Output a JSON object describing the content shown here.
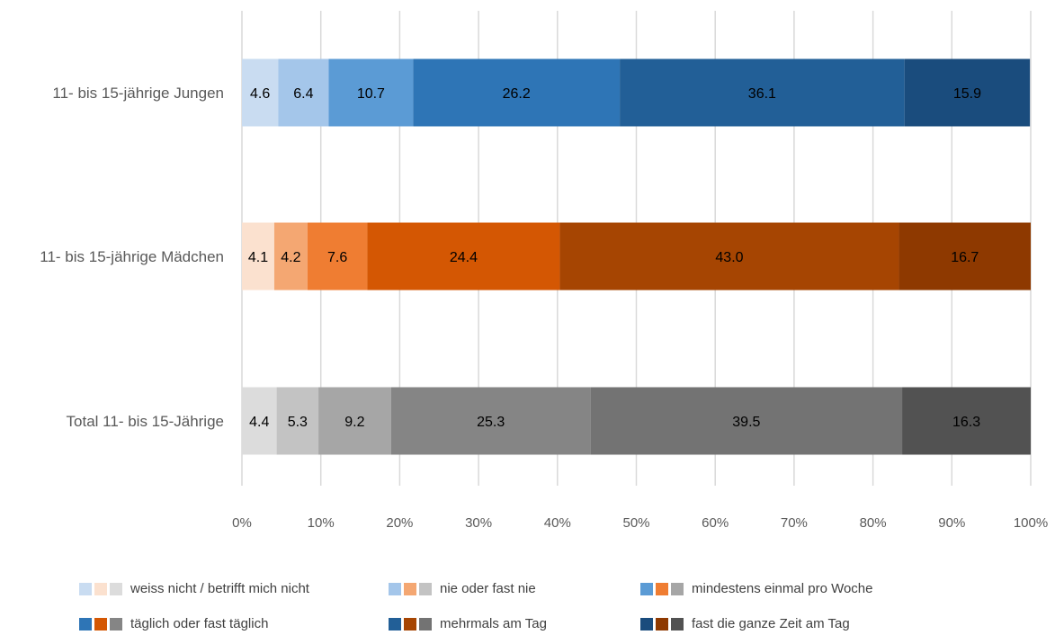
{
  "chart_data": {
    "type": "bar",
    "orientation": "horizontal",
    "stacked": true,
    "percent": true,
    "categories": [
      "11- bis 15-jährige Jungen",
      "11- bis 15-jährige Mädchen",
      "Total  11- bis 15-Jährige"
    ],
    "series": [
      {
        "name": "weiss nicht / betrifft mich nicht",
        "values": [
          4.6,
          4.1,
          4.4
        ]
      },
      {
        "name": "nie oder fast nie",
        "values": [
          6.4,
          4.2,
          5.3
        ]
      },
      {
        "name": "mindestens einmal pro Woche",
        "values": [
          10.7,
          7.6,
          9.2
        ]
      },
      {
        "name": "täglich oder fast täglich",
        "values": [
          26.2,
          24.4,
          25.3
        ]
      },
      {
        "name": "mehrmals am Tag",
        "values": [
          36.1,
          43.0,
          39.5
        ]
      },
      {
        "name": "fast die ganze Zeit am Tag",
        "values": [
          15.9,
          16.7,
          16.3
        ]
      }
    ],
    "category_colors": [
      [
        "#c9dcf1",
        "#a4c6ea",
        "#5b9bd5",
        "#2e75b6",
        "#225f97",
        "#1a4c7d"
      ],
      [
        "#fbe1cf",
        "#f4a772",
        "#ef7d32",
        "#d45703",
        "#a64502",
        "#8e3900"
      ],
      [
        "#dcdcdc",
        "#c3c3c3",
        "#a6a6a6",
        "#858585",
        "#737373",
        "#525252"
      ]
    ],
    "value_label_colors": [
      "#000000",
      "#000000",
      "#000000",
      "#000000",
      "#000000",
      "#000000"
    ],
    "xlim": [
      0,
      100
    ],
    "x_ticks": [
      "0%",
      "10%",
      "20%",
      "30%",
      "40%",
      "50%",
      "60%",
      "70%",
      "80%",
      "90%",
      "100%"
    ],
    "grid": true,
    "legend": "bottom",
    "title": "",
    "xlabel": "",
    "ylabel": ""
  }
}
